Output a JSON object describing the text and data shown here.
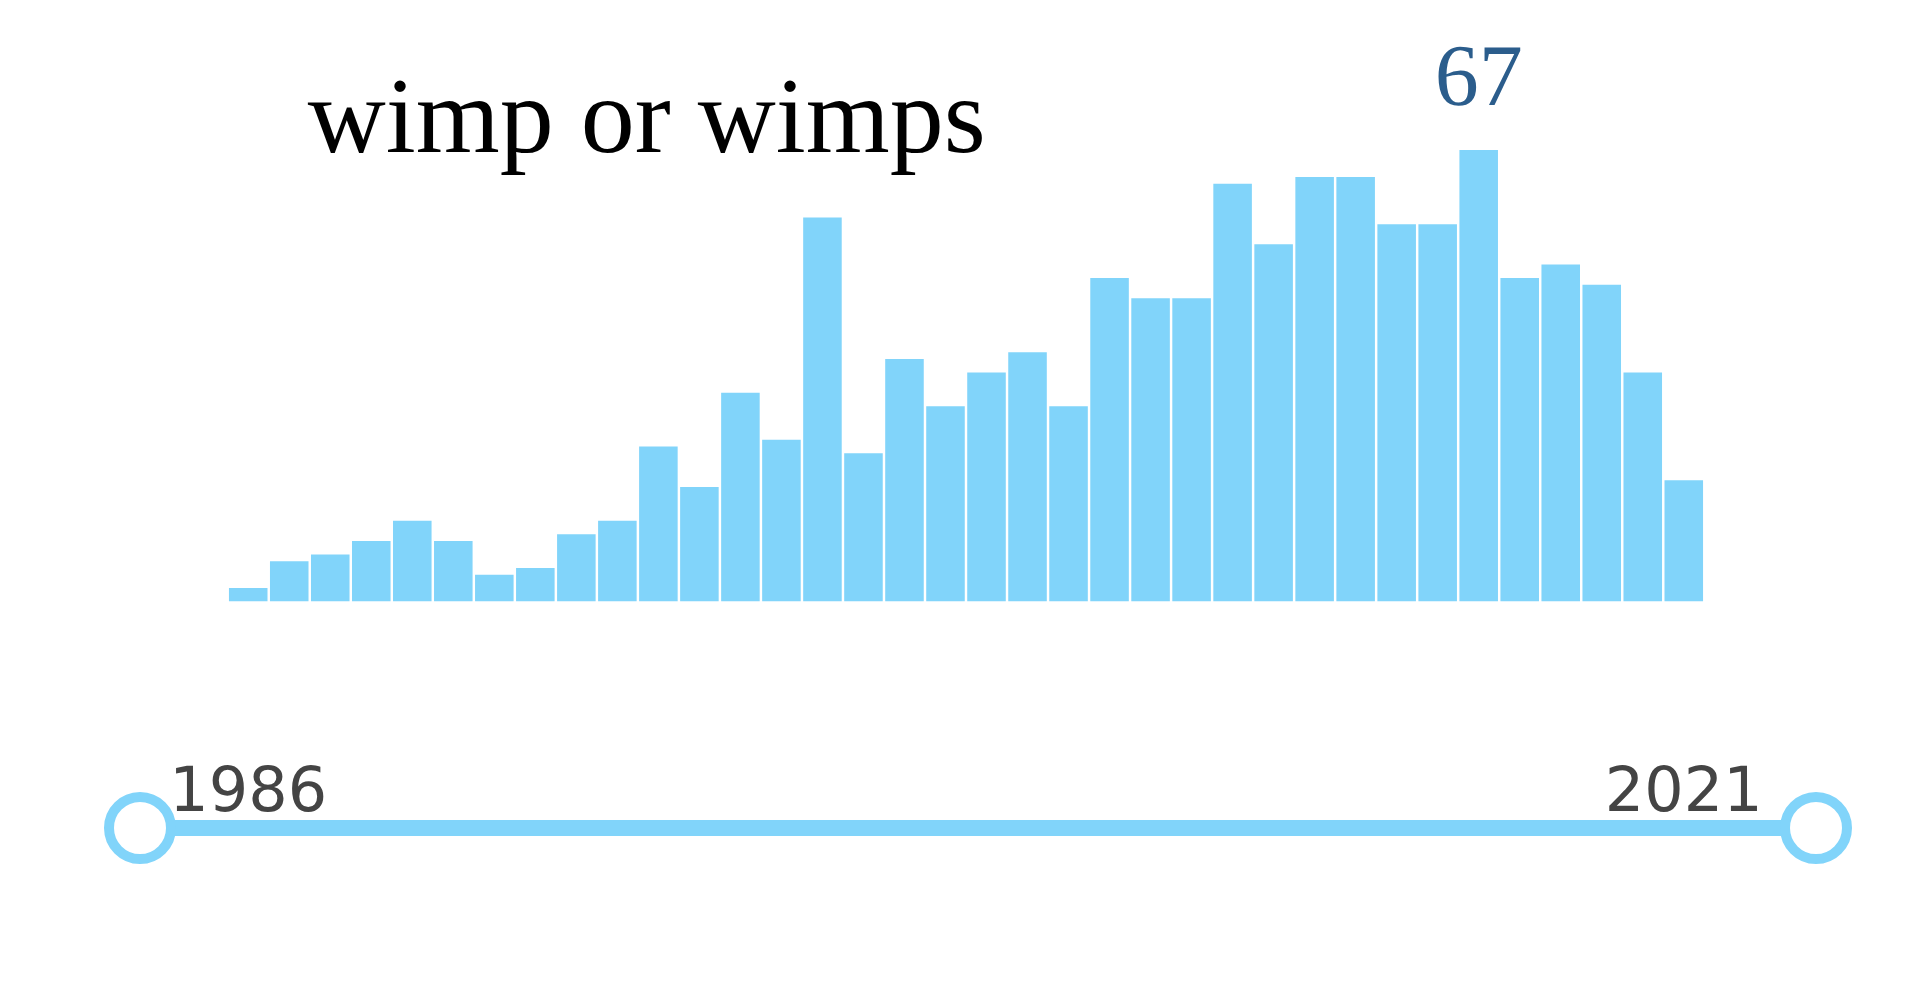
{
  "chart_data": {
    "type": "bar",
    "title": "wimp or wimps",
    "categories": [
      "1986",
      null,
      null,
      null,
      null,
      null,
      null,
      null,
      null,
      null,
      null,
      null,
      null,
      null,
      null,
      null,
      null,
      null,
      null,
      null,
      null,
      null,
      null,
      null,
      null,
      null,
      null,
      null,
      null,
      null,
      null,
      null,
      null,
      null,
      null,
      "2021"
    ],
    "values": [
      2,
      6,
      7,
      9,
      12,
      9,
      4,
      5,
      10,
      12,
      23,
      17,
      31,
      24,
      57,
      22,
      36,
      29,
      34,
      37,
      29,
      48,
      45,
      45,
      62,
      53,
      63,
      63,
      56,
      56,
      67,
      48,
      50,
      47,
      34,
      18
    ],
    "value_labels": [
      null,
      null,
      null,
      null,
      null,
      null,
      null,
      null,
      null,
      null,
      null,
      null,
      null,
      null,
      null,
      null,
      null,
      null,
      null,
      null,
      null,
      null,
      null,
      null,
      null,
      null,
      null,
      null,
      null,
      null,
      "67",
      null,
      null,
      null,
      null,
      null
    ],
    "color": "#81d4fa",
    "grid": false,
    "legend": false,
    "tick_labels": "x"
  }
}
